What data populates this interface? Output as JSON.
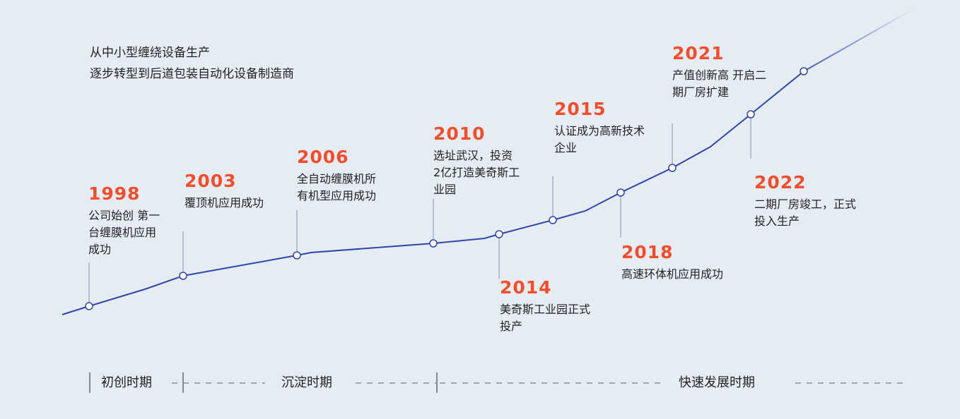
{
  "intro": [
    "从中小型缠绕设备生产",
    "逐步转型到后道包装自动化设备制造商"
  ],
  "milestones": [
    {
      "year": "1998",
      "lines": [
        "公司始创 第一",
        "台缠膜机应用",
        "成功"
      ]
    },
    {
      "year": "2003",
      "lines": [
        "覆顶机应用成功"
      ]
    },
    {
      "year": "2006",
      "lines": [
        "全自动缠膜机所",
        "有机型应用成功"
      ]
    },
    {
      "year": "2010",
      "lines": [
        "选址武汉，投资",
        "2亿打造美奇斯工",
        "业园"
      ]
    },
    {
      "year": "2014",
      "lines": [
        "美奇斯工业园正式",
        "投产"
      ]
    },
    {
      "year": "2015",
      "lines": [
        "认证成为高新技术",
        "企业"
      ]
    },
    {
      "year": "2018",
      "lines": [
        "高速环体机应用成功"
      ]
    },
    {
      "year": "2021",
      "lines": [
        "产值创新高 开启二",
        "期厂房扩建"
      ]
    },
    {
      "year": "2022",
      "lines": [
        "二期厂房竣工，正式",
        "投入生产"
      ]
    }
  ],
  "phases": [
    "初创时期",
    "沉淀时期",
    "快速发展时期"
  ],
  "colors": {
    "line": "#2f46a8",
    "year": "#f04e2c",
    "background": "#e6ecf4",
    "connector": "#a8b0bd"
  }
}
